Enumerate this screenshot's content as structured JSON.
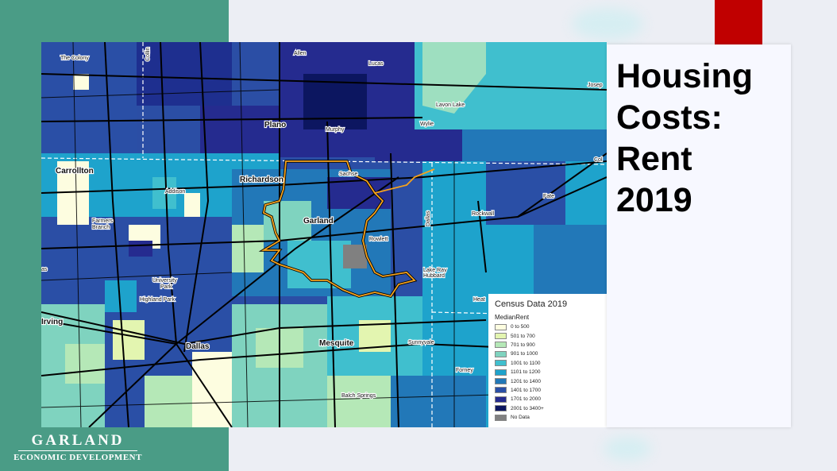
{
  "slide": {
    "title_lines": [
      "Housing",
      "Costs:",
      "Rent",
      "2019"
    ]
  },
  "logo": {
    "line1": "GARLAND",
    "line2": "ECONOMIC DEVELOPMENT"
  },
  "map": {
    "places_major": [
      "Plano",
      "Richardson",
      "Garland",
      "Dallas",
      "Mesquite",
      "Carrollton"
    ],
    "places_minor": [
      "The Colony",
      "Allen",
      "Lucas",
      "Murphy",
      "Wylie",
      "Lavon Lake",
      "Josep",
      "Sachse",
      "Addison",
      "Farmers",
      "Branch",
      "Rowlett",
      "Rockwall",
      "Fate",
      "Col",
      "Lake Ray",
      "Hubbard",
      "University",
      "Park",
      "Highland Park",
      "Irving",
      "Sunnyvale",
      "Forney",
      "Balch Springs",
      "Heat",
      "Collin",
      "Dallas",
      "as"
    ]
  },
  "legend": {
    "title": "Census Data 2019",
    "subtitle": "MedianRent",
    "items": [
      {
        "label": "0 to 500",
        "color": "#fdfde0"
      },
      {
        "label": "501 to 700",
        "color": "#e3f5b0"
      },
      {
        "label": "701 to 900",
        "color": "#b5e8b7"
      },
      {
        "label": "901 to 1000",
        "color": "#7fd3bf"
      },
      {
        "label": "1001 to 1100",
        "color": "#40bfce"
      },
      {
        "label": "1101 to 1200",
        "color": "#1ea3cc"
      },
      {
        "label": "1201 to 1400",
        "color": "#2278b8"
      },
      {
        "label": "1401 to 1700",
        "color": "#2a4fa6"
      },
      {
        "label": "1701 to 2000",
        "color": "#252b8f"
      },
      {
        "label": "2001 to 3400+",
        "color": "#0c1660"
      },
      {
        "label": "No Data",
        "color": "#808080"
      }
    ]
  }
}
